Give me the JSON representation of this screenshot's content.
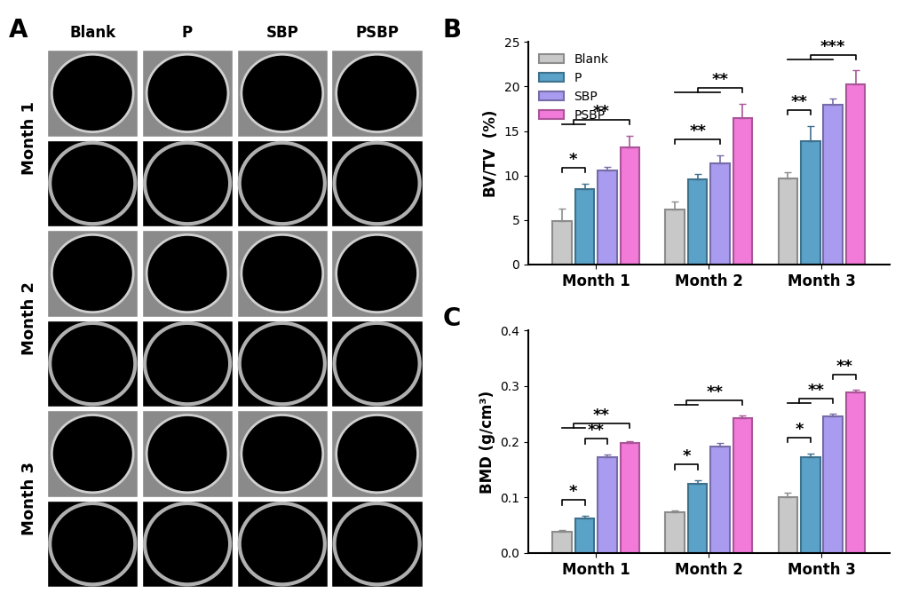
{
  "image_panel": {
    "label": "A",
    "columns": [
      "Blank",
      "P",
      "SBP",
      "PSBP"
    ],
    "rows": [
      "Month 1",
      "Month 2",
      "Month 3"
    ]
  },
  "chart_data": [
    {
      "type": "bar",
      "title": "B",
      "ylabel": "BV/TV  (%)",
      "categories": [
        "Month 1",
        "Month 2",
        "Month 3"
      ],
      "ylim": [
        0,
        25
      ],
      "yticks": [
        0,
        5,
        10,
        15,
        20,
        25
      ],
      "legend": "upper left",
      "series": [
        {
          "name": "Blank",
          "color": "#c8c8c8",
          "values": [
            4.9,
            6.2,
            9.7
          ],
          "errors": [
            1.4,
            0.9,
            0.7
          ]
        },
        {
          "name": "P",
          "color": "#5aa2c8",
          "values": [
            8.5,
            9.6,
            13.9
          ],
          "errors": [
            0.6,
            0.6,
            1.7
          ]
        },
        {
          "name": "SBP",
          "color": "#a99cf0",
          "values": [
            10.6,
            11.4,
            18.0
          ],
          "errors": [
            0.4,
            0.9,
            0.7
          ]
        },
        {
          "name": "PSBP",
          "color": "#f27ad9",
          "values": [
            13.2,
            16.5,
            20.2
          ],
          "errors": [
            1.3,
            1.6,
            1.6
          ]
        }
      ],
      "annotations": [
        {
          "text": "*",
          "category": "Month 1",
          "from": [
            "Blank"
          ],
          "to": [
            "P"
          ]
        },
        {
          "text": "**",
          "category": "Month 1",
          "from": [
            "Blank",
            "P"
          ],
          "to": [
            "PSBP"
          ]
        },
        {
          "text": "**",
          "category": "Month 2",
          "from": [
            "Blank"
          ],
          "to": [
            "SBP"
          ]
        },
        {
          "text": "**",
          "category": "Month 2",
          "from": [
            "Blank",
            "P",
            "SBP"
          ],
          "to": [
            "PSBP"
          ]
        },
        {
          "text": "**",
          "category": "Month 3",
          "from": [
            "Blank"
          ],
          "to": [
            "P"
          ]
        },
        {
          "text": "***",
          "category": "Month 3",
          "from": [
            "Blank",
            "P",
            "SBP"
          ],
          "to": [
            "PSBP"
          ]
        }
      ]
    },
    {
      "type": "bar",
      "title": "C",
      "ylabel": "BMD (g/cm³)",
      "categories": [
        "Month 1",
        "Month 2",
        "Month 3"
      ],
      "ylim": [
        0,
        0.4
      ],
      "yticks": [
        {
          "value": 0,
          "label": "0.0"
        },
        0.1,
        0.2,
        0.3,
        0.4
      ],
      "series": [
        {
          "name": "Blank",
          "color": "#c8c8c8",
          "values": [
            0.038,
            0.073,
            0.101
          ],
          "errors": [
            0.004,
            0.004,
            0.008
          ]
        },
        {
          "name": "P",
          "color": "#5aa2c8",
          "values": [
            0.062,
            0.125,
            0.173
          ],
          "errors": [
            0.005,
            0.006,
            0.006
          ]
        },
        {
          "name": "SBP",
          "color": "#a99cf0",
          "values": [
            0.173,
            0.191,
            0.246
          ],
          "errors": [
            0.004,
            0.006,
            0.004
          ]
        },
        {
          "name": "PSBP",
          "color": "#f27ad9",
          "values": [
            0.197,
            0.242,
            0.289
          ],
          "errors": [
            0.004,
            0.005,
            0.004
          ]
        }
      ],
      "annotations": [
        {
          "text": "*",
          "category": "Month 1",
          "from": [
            "Blank"
          ],
          "to": [
            "P"
          ]
        },
        {
          "text": "**",
          "category": "Month 1",
          "from": [
            "P"
          ],
          "to": [
            "SBP"
          ]
        },
        {
          "text": "**",
          "category": "Month 1",
          "from": [
            "Blank",
            "P"
          ],
          "to": [
            "PSBP"
          ]
        },
        {
          "text": "*",
          "category": "Month 2",
          "from": [
            "Blank"
          ],
          "to": [
            "P"
          ]
        },
        {
          "text": "**",
          "category": "Month 2",
          "from": [
            "Blank",
            "P"
          ],
          "to": [
            "PSBP"
          ]
        },
        {
          "text": "*",
          "category": "Month 3",
          "from": [
            "Blank"
          ],
          "to": [
            "P"
          ]
        },
        {
          "text": "**",
          "category": "Month 3",
          "from": [
            "Blank",
            "P"
          ],
          "to": [
            "SBP"
          ]
        },
        {
          "text": "**",
          "category": "Month 3",
          "from": [
            "SBP"
          ],
          "to": [
            "PSBP"
          ]
        }
      ]
    }
  ]
}
